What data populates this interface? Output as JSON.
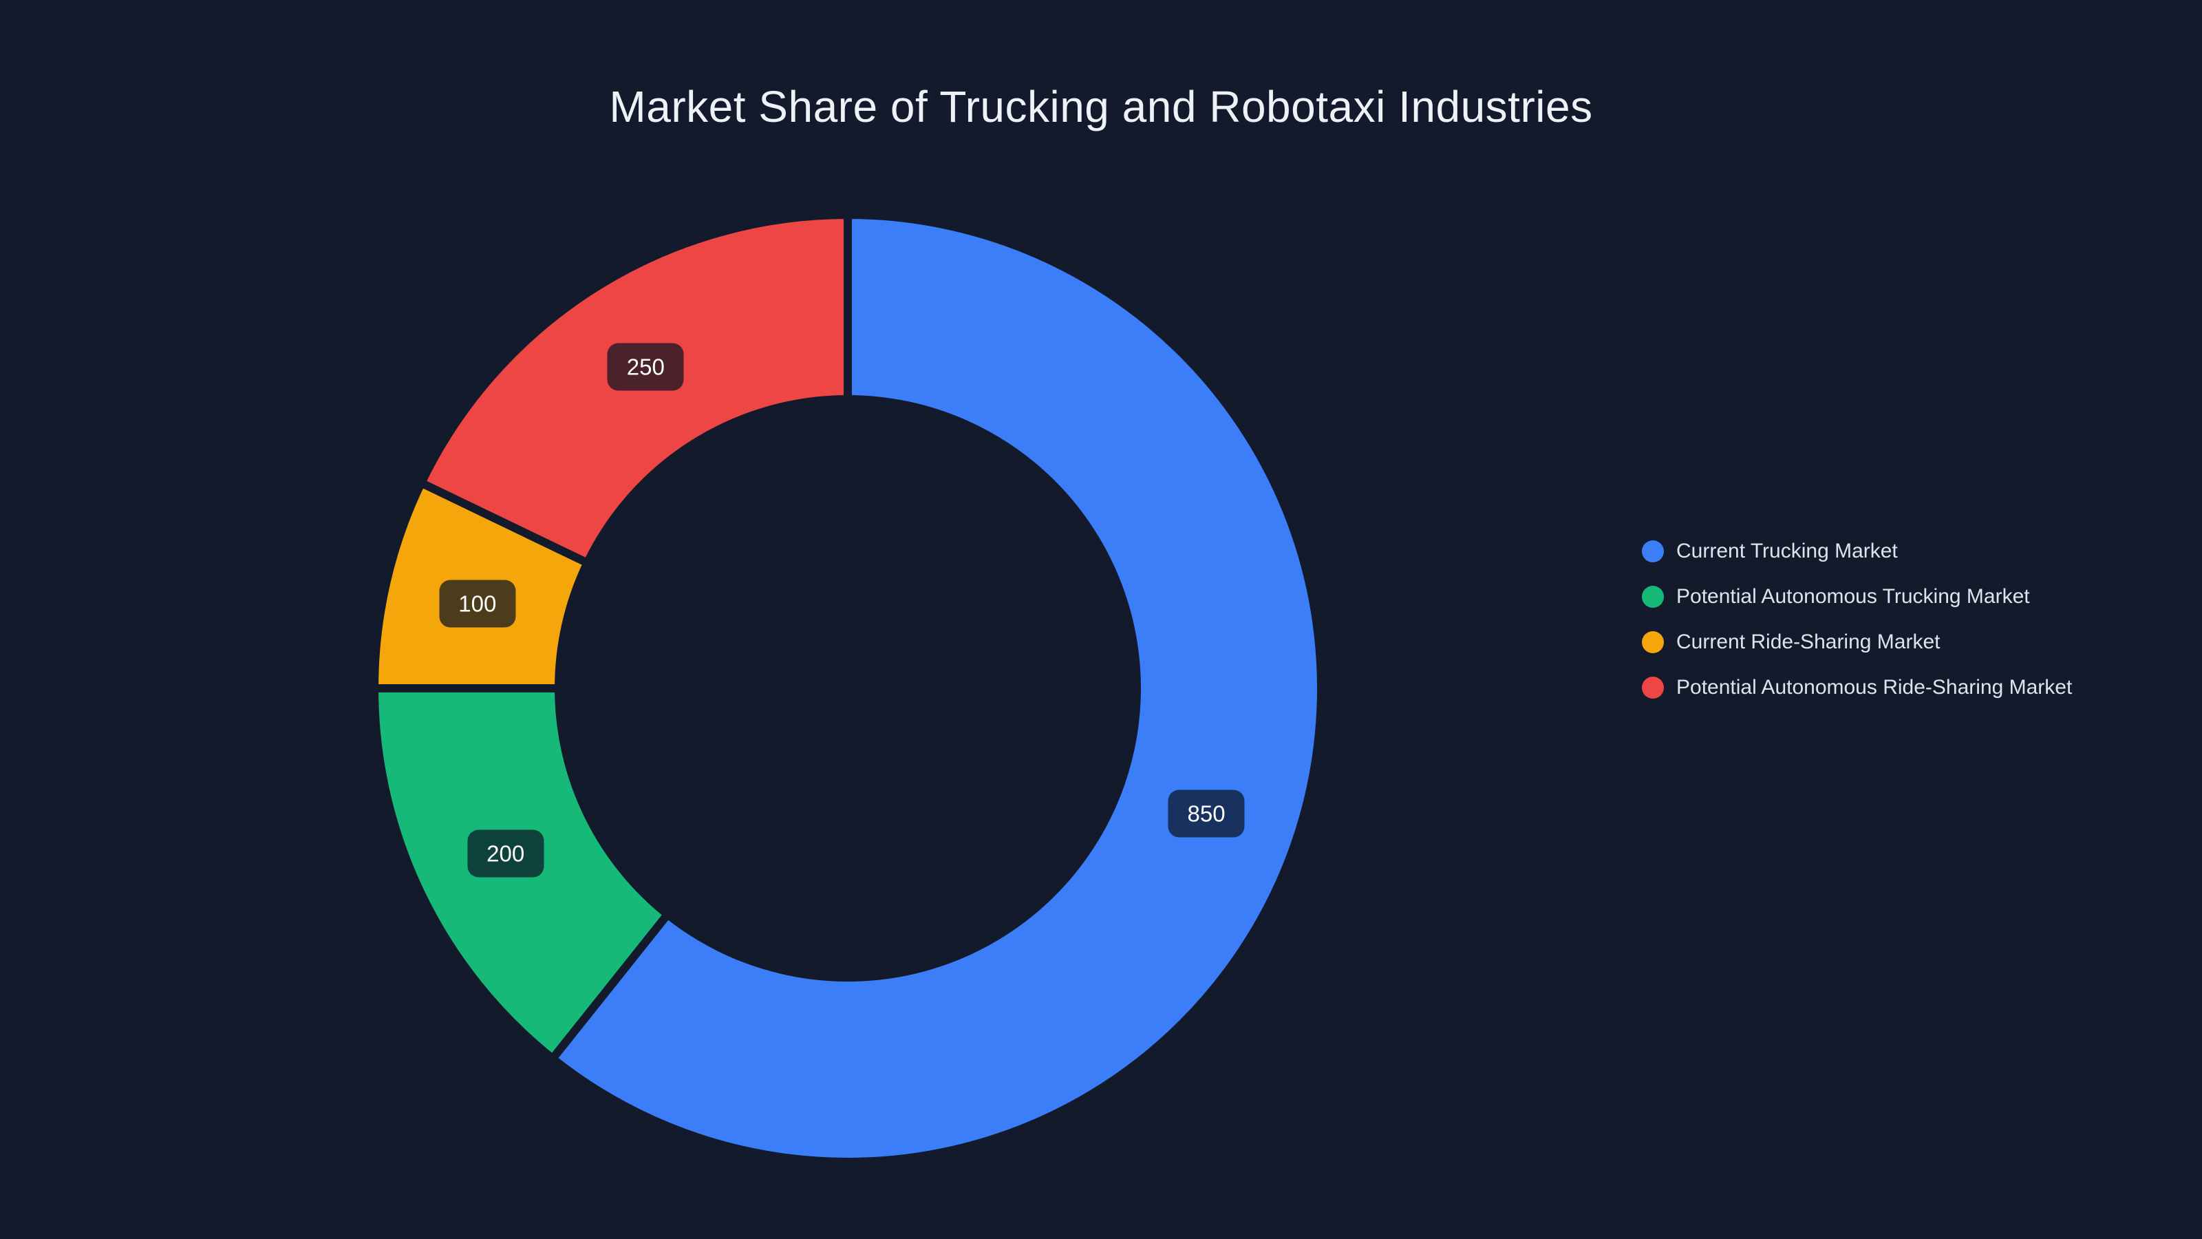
{
  "chart_data": {
    "type": "pie",
    "subtype": "donut",
    "title": "Market Share of Trucking and Robotaxi Industries",
    "series": [
      {
        "name": "Current Trucking Market",
        "value": 850,
        "color": "#3b7ef7"
      },
      {
        "name": "Potential Autonomous Trucking Market",
        "value": 200,
        "color": "#17b978"
      },
      {
        "name": "Current Ride-Sharing Market",
        "value": 100,
        "color": "#f5a60b"
      },
      {
        "name": "Potential Autonomous Ride-Sharing Market",
        "value": 250,
        "color": "#ee4545"
      }
    ],
    "total": 1400,
    "value_labels": [
      "850",
      "200",
      "100",
      "250"
    ],
    "start_angle": "top",
    "direction": "clockwise",
    "legend_position": "right",
    "background_color": "#121a2c"
  },
  "legend": {
    "items": [
      "Current Trucking Market",
      "Potential Autonomous Trucking Market",
      "Current Ride-Sharing Market",
      "Potential Autonomous Ride-Sharing Market"
    ]
  }
}
